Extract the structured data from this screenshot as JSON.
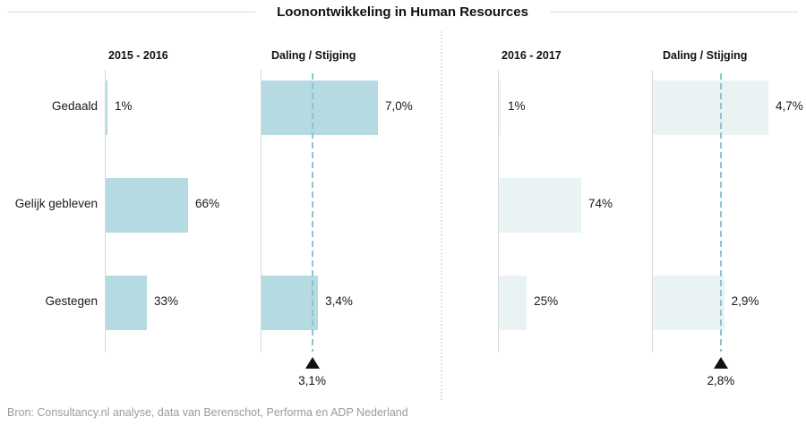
{
  "title": "Loonontwikkeling in Human Resources",
  "footer": "Bron: Consultancy.nl analyse, data van Berenschot, Performa en ADP Nederland",
  "colors": {
    "bar_primary": "#b5dae1",
    "bar_secondary": "#e9f3f4",
    "average_line": "#8ec4d0",
    "axis_line": "#d9d9d9",
    "divider": "#e2e2e2",
    "marker": "#111111",
    "text": "#1a1a1a",
    "footer_text": "#9b9b9b"
  },
  "chart_data": {
    "type": "bar",
    "orientation": "horizontal",
    "title": "Loonontwikkeling in Human Resources",
    "categories": [
      "Gedaald",
      "Gelijk gebleven",
      "Gestegen"
    ],
    "unit": "%",
    "legend": null,
    "grid": false,
    "panels": [
      {
        "header": "2015 - 2016",
        "values": [
          1,
          66,
          33
        ],
        "value_labels": [
          "1%",
          "66%",
          "33%"
        ],
        "average": null,
        "average_label": null
      },
      {
        "header": "Daling / Stijging",
        "values": [
          7.0,
          null,
          3.4
        ],
        "value_labels": [
          "7,0%",
          null,
          "3,4%"
        ],
        "average": 3.1,
        "average_label": "3,1%"
      },
      {
        "header": "2016 - 2017",
        "values": [
          1,
          74,
          25
        ],
        "value_labels": [
          "1%",
          "74%",
          "25%"
        ],
        "average": null,
        "average_label": null
      },
      {
        "header": "Daling / Stijging",
        "values": [
          4.7,
          null,
          2.9
        ],
        "value_labels": [
          "4,7%",
          null,
          "2,9%"
        ],
        "average": 2.8,
        "average_label": "2,8%"
      }
    ],
    "source_note": "Bron: Consultancy.nl analyse, data van Berenschot, Performa en ADP Nederland"
  }
}
